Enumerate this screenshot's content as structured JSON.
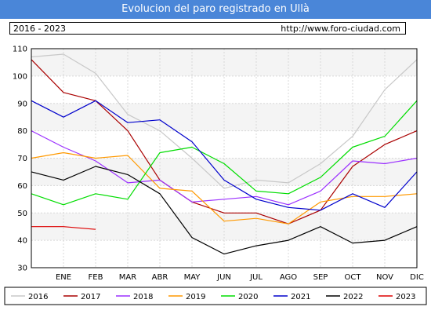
{
  "header": {
    "title": "Evolucion del paro registrado en Ullà",
    "range_label": "2016 - 2023",
    "url": "http://www.foro-ciudad.com"
  },
  "chart_data": {
    "type": "line",
    "title": "Evolucion del paro registrado en Ullà",
    "xlabel": "",
    "ylabel": "",
    "x_tick_labels": [
      "ENE",
      "FEB",
      "MAR",
      "ABR",
      "MAY",
      "JUN",
      "JUL",
      "AGO",
      "SEP",
      "OCT",
      "NOV",
      "DIC"
    ],
    "y_ticks": [
      30,
      40,
      50,
      60,
      70,
      80,
      90,
      100,
      110
    ],
    "ylim": [
      30,
      110
    ],
    "grid": true,
    "legend_position": "bottom",
    "series": [
      {
        "name": "2016",
        "color": "#c8c8c8",
        "values": [
          107,
          108,
          101,
          86,
          80,
          70,
          59,
          62,
          61,
          68,
          78,
          95,
          106
        ]
      },
      {
        "name": "2017",
        "color": "#aa0000",
        "values": [
          106,
          94,
          91,
          80,
          62,
          54,
          50,
          50,
          46,
          51,
          67,
          75,
          80
        ]
      },
      {
        "name": "2018",
        "color": "#9b30ff",
        "values": [
          80,
          74,
          69,
          61,
          62,
          54,
          55,
          56,
          53,
          58,
          69,
          68,
          70
        ]
      },
      {
        "name": "2019",
        "color": "#ff9900",
        "values": [
          70,
          72,
          70,
          71,
          59,
          58,
          47,
          48,
          46,
          54,
          56,
          56,
          57
        ]
      },
      {
        "name": "2020",
        "color": "#00dd00",
        "values": [
          57,
          53,
          57,
          55,
          72,
          74,
          68,
          58,
          57,
          63,
          74,
          78,
          91
        ]
      },
      {
        "name": "2021",
        "color": "#0000cc",
        "values": [
          91,
          85,
          91,
          83,
          84,
          76,
          62,
          55,
          52,
          51,
          57,
          52,
          65
        ]
      },
      {
        "name": "2022",
        "color": "#000000",
        "values": [
          65,
          62,
          67,
          64,
          57,
          41,
          35,
          38,
          40,
          45,
          39,
          40,
          45
        ]
      },
      {
        "name": "2023",
        "color": "#dd0000",
        "values": [
          45,
          45,
          44
        ]
      }
    ]
  }
}
